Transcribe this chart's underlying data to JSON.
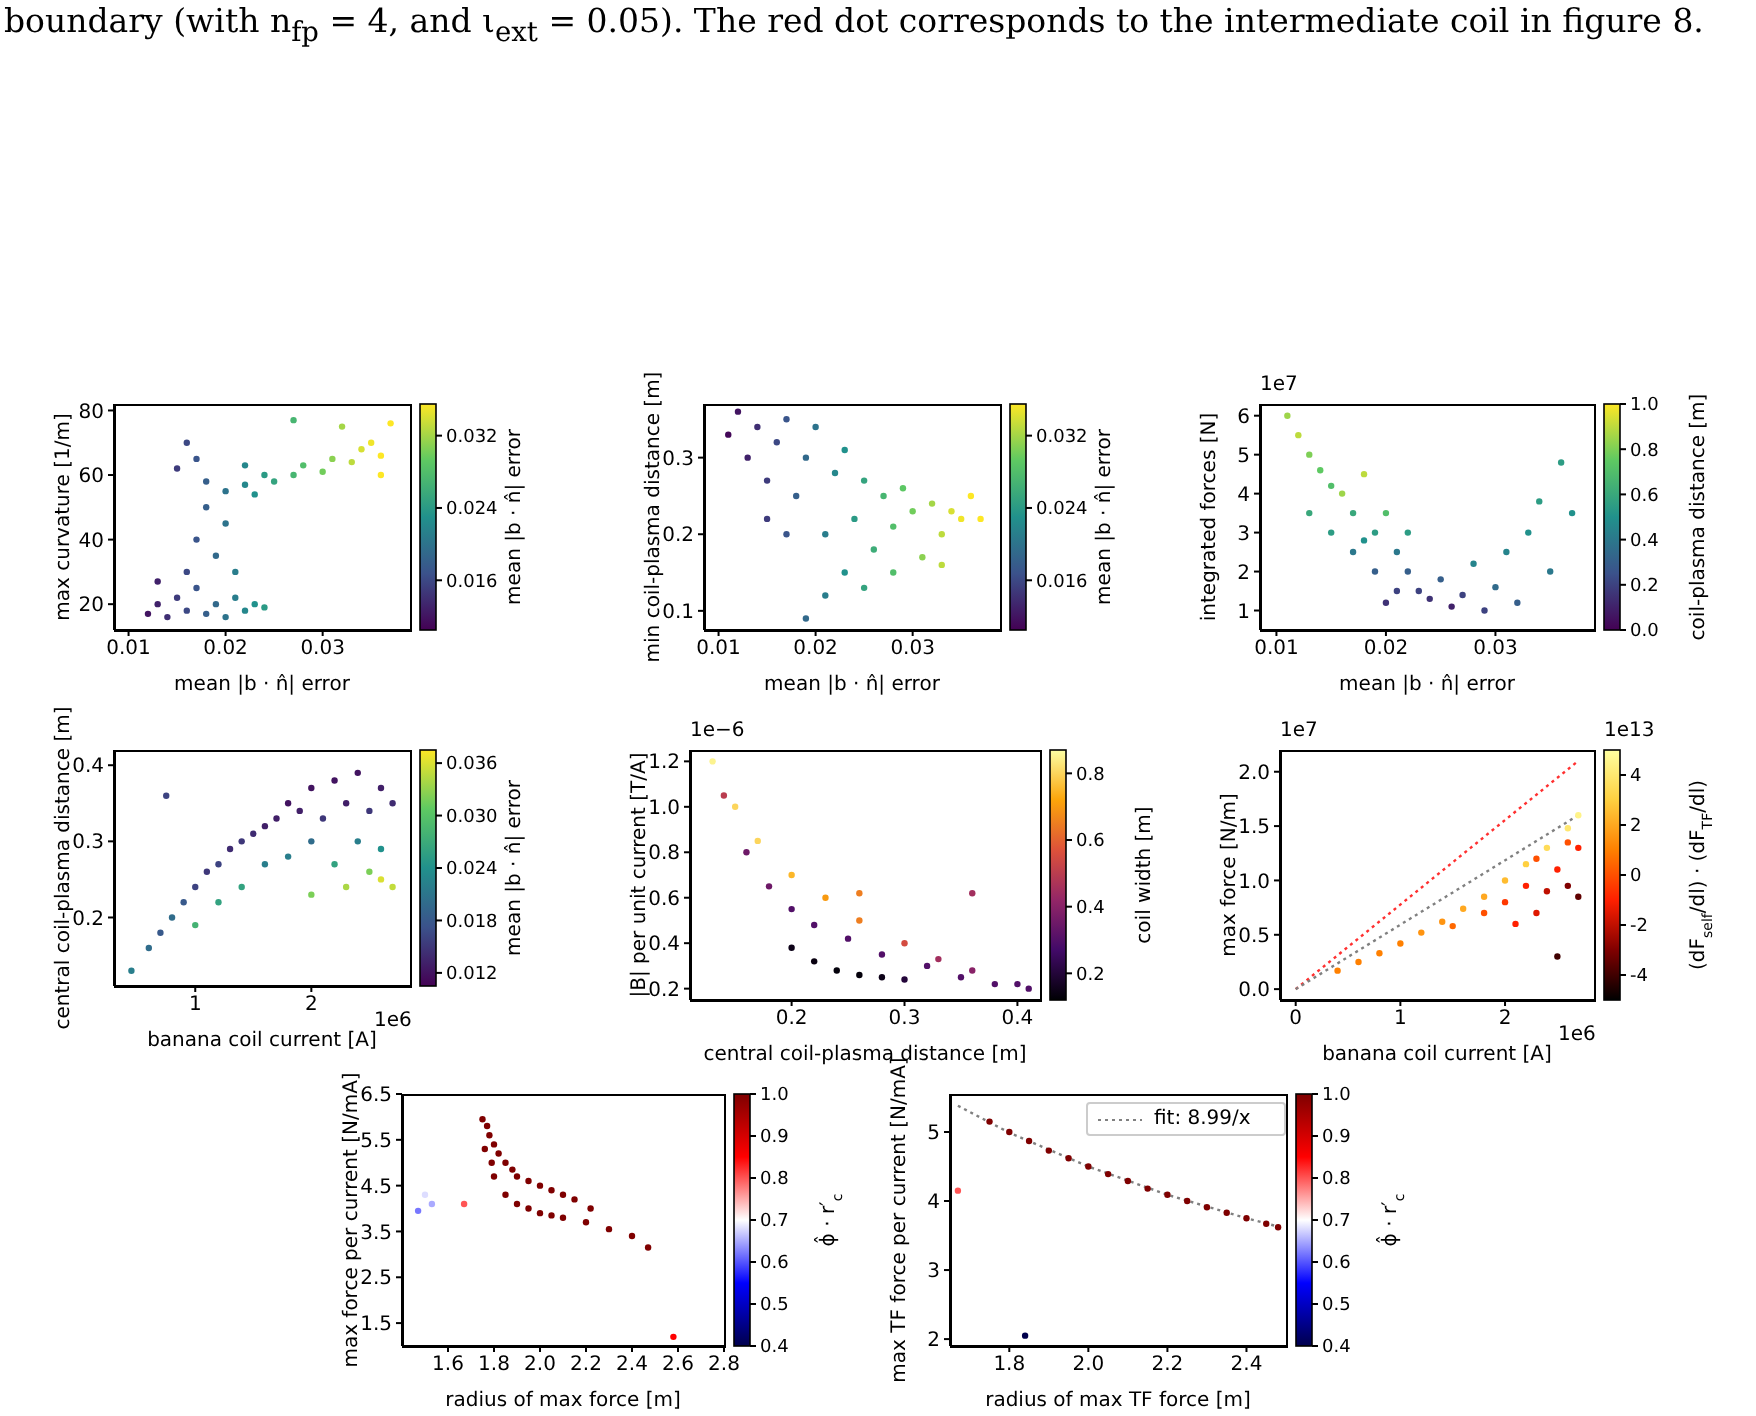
{
  "chart_data": [
    {
      "type": "scatter",
      "annotations": [
        "boundary (with n$_{fp}$ = 4, and ι$_{ext}$ = 0.05). The red dot corresponds to the intermediate coil in figure 8."
      ],
      "xlabel": "mean |b · n̂| error",
      "ylabel": "max curvature [1/m]",
      "clabel": "mean |b · n̂| error",
      "marker": "circle",
      "xlim": [
        0.0085,
        0.039
      ],
      "xticks": [
        0.01,
        0.02,
        0.03
      ],
      "ylim": [
        12,
        82
      ],
      "yticks": [
        20,
        40,
        60,
        80
      ],
      "clim": [
        0.0105,
        0.0355
      ],
      "cticks": [
        0.016,
        0.024,
        0.032
      ],
      "series": [
        {
          "x": [
            0.012,
            0.013,
            0.014,
            0.015,
            0.016,
            0.017,
            0.018,
            0.019,
            0.02,
            0.021,
            0.022,
            0.023,
            0.024,
            0.013,
            0.016,
            0.017,
            0.018,
            0.019,
            0.02,
            0.021,
            0.016,
            0.015,
            0.017,
            0.018,
            0.02,
            0.022,
            0.023,
            0.024,
            0.025,
            0.027,
            0.028,
            0.03,
            0.031,
            0.033,
            0.034,
            0.035,
            0.036,
            0.037,
            0.032,
            0.027,
            0.022,
            0.036
          ],
          "values": [
            17,
            20,
            16,
            22,
            18,
            25,
            17,
            20,
            16,
            22,
            18,
            20,
            19,
            27,
            30,
            40,
            50,
            35,
            45,
            30,
            70,
            62,
            65,
            58,
            55,
            57,
            54,
            60,
            58,
            60,
            63,
            61,
            65,
            64,
            68,
            70,
            66,
            76,
            75,
            77,
            63,
            60
          ],
          "cvalues": [
            0.012,
            0.013,
            0.014,
            0.015,
            0.016,
            0.017,
            0.018,
            0.019,
            0.02,
            0.021,
            0.022,
            0.023,
            0.024,
            0.013,
            0.016,
            0.017,
            0.018,
            0.019,
            0.02,
            0.021,
            0.016,
            0.015,
            0.017,
            0.018,
            0.02,
            0.022,
            0.023,
            0.024,
            0.025,
            0.027,
            0.028,
            0.03,
            0.031,
            0.033,
            0.034,
            0.035,
            0.036,
            0.037,
            0.032,
            0.027,
            0.022,
            0.036
          ]
        }
      ]
    },
    {
      "type": "scatter",
      "xlabel": "mean |b · n̂| error",
      "ylabel": "min coil-plasma distance [m]",
      "clabel": "mean |b · n̂| error",
      "marker": "circle",
      "xlim": [
        0.0085,
        0.039
      ],
      "xticks": [
        0.01,
        0.02,
        0.03
      ],
      "ylim": [
        0.075,
        0.37
      ],
      "yticks": [
        0.1,
        0.2,
        0.3
      ],
      "clim": [
        0.0105,
        0.0355
      ],
      "cticks": [
        0.016,
        0.024,
        0.032
      ],
      "series": [
        {
          "x": [
            0.011,
            0.012,
            0.013,
            0.014,
            0.015,
            0.016,
            0.017,
            0.018,
            0.019,
            0.02,
            0.021,
            0.022,
            0.023,
            0.024,
            0.025,
            0.026,
            0.027,
            0.028,
            0.029,
            0.03,
            0.031,
            0.032,
            0.033,
            0.034,
            0.035,
            0.036,
            0.037,
            0.019,
            0.021,
            0.025,
            0.017,
            0.015,
            0.023,
            0.028,
            0.033
          ],
          "values": [
            0.33,
            0.36,
            0.3,
            0.34,
            0.27,
            0.32,
            0.35,
            0.25,
            0.3,
            0.34,
            0.2,
            0.28,
            0.15,
            0.22,
            0.27,
            0.18,
            0.25,
            0.21,
            0.26,
            0.23,
            0.17,
            0.24,
            0.2,
            0.23,
            0.22,
            0.25,
            0.22,
            0.09,
            0.12,
            0.13,
            0.2,
            0.22,
            0.31,
            0.15,
            0.16
          ],
          "cvalues": [
            0.011,
            0.012,
            0.013,
            0.014,
            0.015,
            0.016,
            0.017,
            0.018,
            0.019,
            0.02,
            0.021,
            0.022,
            0.023,
            0.024,
            0.025,
            0.026,
            0.027,
            0.028,
            0.029,
            0.03,
            0.031,
            0.032,
            0.033,
            0.034,
            0.035,
            0.036,
            0.037,
            0.019,
            0.021,
            0.025,
            0.017,
            0.015,
            0.023,
            0.028,
            0.033
          ]
        }
      ]
    },
    {
      "type": "scatter",
      "annotations": [
        "1e7"
      ],
      "xlabel": "mean |b · n̂| error",
      "ylabel": "integrated forces [N]",
      "clabel": "coil-plasma distance [m]",
      "marker": "circle",
      "xlim": [
        0.0085,
        0.039
      ],
      "xticks": [
        0.01,
        0.02,
        0.03
      ],
      "ylim": [
        0.5,
        6.3
      ],
      "yticks": [
        1,
        2,
        3,
        4,
        5,
        6
      ],
      "clim": [
        0,
        1
      ],
      "cticks": [
        {
          "value": 0,
          "label": "0.0"
        },
        0.2,
        0.4,
        0.6,
        0.8,
        {
          "value": 1,
          "label": "1.0"
        }
      ],
      "series": [
        {
          "x": [
            0.011,
            0.012,
            0.013,
            0.014,
            0.015,
            0.016,
            0.017,
            0.018,
            0.019,
            0.02,
            0.021,
            0.022,
            0.023,
            0.024,
            0.025,
            0.026,
            0.027,
            0.028,
            0.029,
            0.03,
            0.031,
            0.032,
            0.033,
            0.034,
            0.035,
            0.036,
            0.037,
            0.015,
            0.017,
            0.019,
            0.021,
            0.013,
            0.022,
            0.018,
            0.02
          ],
          "values": [
            6.0,
            5.5,
            5.0,
            4.6,
            4.2,
            4.0,
            3.5,
            4.5,
            3.0,
            3.5,
            2.5,
            2.0,
            1.5,
            1.3,
            1.8,
            1.1,
            1.4,
            2.2,
            1.0,
            1.6,
            2.5,
            1.2,
            3.0,
            3.8,
            2.0,
            4.8,
            3.5,
            3.0,
            2.5,
            2.0,
            1.5,
            3.5,
            3.0,
            2.8,
            1.2
          ],
          "cvalues": [
            0.85,
            0.9,
            0.8,
            0.75,
            0.7,
            0.85,
            0.6,
            0.9,
            0.55,
            0.7,
            0.4,
            0.3,
            0.2,
            0.15,
            0.3,
            0.1,
            0.2,
            0.45,
            0.2,
            0.35,
            0.45,
            0.3,
            0.5,
            0.55,
            0.4,
            0.55,
            0.5,
            0.55,
            0.4,
            0.3,
            0.2,
            0.6,
            0.55,
            0.5,
            0.15
          ]
        }
      ]
    },
    {
      "type": "scatter",
      "annotations": [
        "1e6"
      ],
      "xlabel": "banana coil current [A]",
      "ylabel": "central coil-plasma distance [m]",
      "clabel": "mean |b · n̂| error",
      "marker": "circle",
      "xlim": [
        0.3,
        2.85
      ],
      "xticks": [
        1,
        2
      ],
      "ylim": [
        0.11,
        0.42
      ],
      "yticks": [
        0.2,
        0.3,
        0.4
      ],
      "clim": [
        0.0105,
        0.0375
      ],
      "cticks": [
        0.012,
        0.018,
        0.024,
        {
          "value": 0.03,
          "label": "0.030"
        },
        0.036
      ],
      "series": [
        {
          "x": [
            0.45,
            0.6,
            0.7,
            0.75,
            0.8,
            0.9,
            1.0,
            1.0,
            1.1,
            1.2,
            1.2,
            1.3,
            1.4,
            1.4,
            1.5,
            1.6,
            1.6,
            1.7,
            1.8,
            1.8,
            1.9,
            2.0,
            2.0,
            2.0,
            2.1,
            2.2,
            2.2,
            2.3,
            2.3,
            2.4,
            2.4,
            2.5,
            2.5,
            2.6,
            2.6,
            2.6,
            2.7,
            2.7
          ],
          "values": [
            0.13,
            0.16,
            0.18,
            0.36,
            0.2,
            0.22,
            0.24,
            0.19,
            0.26,
            0.27,
            0.22,
            0.29,
            0.3,
            0.24,
            0.31,
            0.32,
            0.27,
            0.33,
            0.35,
            0.28,
            0.34,
            0.37,
            0.3,
            0.23,
            0.33,
            0.38,
            0.27,
            0.35,
            0.24,
            0.39,
            0.3,
            0.34,
            0.26,
            0.37,
            0.29,
            0.25,
            0.35,
            0.24
          ],
          "cvalues": [
            0.022,
            0.02,
            0.018,
            0.016,
            0.02,
            0.018,
            0.016,
            0.028,
            0.015,
            0.016,
            0.026,
            0.014,
            0.015,
            0.026,
            0.014,
            0.013,
            0.022,
            0.013,
            0.012,
            0.022,
            0.013,
            0.012,
            0.02,
            0.032,
            0.015,
            0.012,
            0.026,
            0.013,
            0.034,
            0.012,
            0.022,
            0.015,
            0.032,
            0.013,
            0.024,
            0.036,
            0.014,
            0.035
          ]
        }
      ]
    },
    {
      "type": "scatter",
      "annotations": [
        "1e−6"
      ],
      "xlabel": "central coil-plasma distance [m]",
      "ylabel": "|B| per unit current [T/A]",
      "clabel": "coil width [m]",
      "marker": "circle",
      "xlim": [
        0.11,
        0.42
      ],
      "xticks": [
        0.2,
        0.3,
        0.4
      ],
      "ylim": [
        0.15,
        1.25
      ],
      "yticks": [
        0.2,
        0.4,
        0.6,
        0.8,
        {
          "value": 1,
          "label": "1.0"
        },
        1.2
      ],
      "clim": [
        0.12,
        0.87
      ],
      "cticks": [
        0.2,
        0.4,
        0.6,
        0.8
      ],
      "series": [
        {
          "x": [
            0.13,
            0.15,
            0.17,
            0.2,
            0.23,
            0.26,
            0.3,
            0.33,
            0.36,
            0.4,
            0.14,
            0.16,
            0.18,
            0.2,
            0.22,
            0.25,
            0.28,
            0.32,
            0.35,
            0.38,
            0.41,
            0.2,
            0.22,
            0.24,
            0.26,
            0.28,
            0.3,
            0.26,
            0.36
          ],
          "values": [
            1.2,
            1.0,
            0.85,
            0.7,
            0.6,
            0.5,
            0.4,
            0.33,
            0.28,
            0.22,
            1.05,
            0.8,
            0.65,
            0.55,
            0.48,
            0.42,
            0.35,
            0.3,
            0.25,
            0.22,
            0.2,
            0.38,
            0.32,
            0.28,
            0.26,
            0.25,
            0.24,
            0.62,
            0.62
          ],
          "cvalues": [
            0.85,
            0.8,
            0.8,
            0.75,
            0.7,
            0.65,
            0.55,
            0.45,
            0.4,
            0.3,
            0.5,
            0.35,
            0.35,
            0.3,
            0.3,
            0.3,
            0.3,
            0.3,
            0.3,
            0.3,
            0.3,
            0.15,
            0.14,
            0.13,
            0.13,
            0.15,
            0.2,
            0.65,
            0.45
          ]
        }
      ]
    },
    {
      "type": "scatter",
      "annotations": [
        "1e7",
        "1e6",
        "1e13"
      ],
      "xlabel": "banana coil current [A]",
      "ylabel": "max force [N/m]",
      "clabel": "(dF$_{self}$/dl) · (dF$_{TF}$/dl)",
      "xlim": [
        -0.15,
        2.85
      ],
      "xticks": [
        0,
        1,
        2
      ],
      "ylim": [
        -0.1,
        2.2
      ],
      "yticks": [
        {
          "value": 0,
          "label": "0.0"
        },
        0.5,
        {
          "value": 1,
          "label": "1.0"
        },
        1.5,
        {
          "value": 2,
          "label": "2.0"
        }
      ],
      "clim": [
        -5,
        5
      ],
      "cticks": [
        -4,
        -2,
        0,
        2,
        4
      ],
      "series": [
        {
          "marker": "circle",
          "x": [
            0.4,
            0.6,
            0.8,
            1.0,
            1.2,
            1.4,
            1.6,
            1.8,
            2.0,
            2.2,
            2.4,
            2.6,
            2.7,
            1.5,
            1.8,
            2.0,
            2.2,
            2.3,
            2.4,
            2.5,
            2.6,
            2.7,
            2.7,
            2.6,
            2.5,
            2.1,
            2.3
          ],
          "values": [
            0.17,
            0.25,
            0.33,
            0.42,
            0.52,
            0.62,
            0.74,
            0.85,
            1.0,
            1.15,
            1.3,
            1.48,
            1.6,
            0.58,
            0.7,
            0.8,
            0.95,
            1.2,
            0.9,
            1.1,
            0.95,
            0.85,
            1.3,
            1.35,
            0.3,
            0.6,
            0.7
          ],
          "colors": [
            "#ff8000",
            "#ff8000",
            "#ff8000",
            "#ff8000",
            "#ff9410",
            "#ff9410",
            "#ffa820",
            "#ffa820",
            "#ffbc30",
            "#ffd040",
            "#ffdc58",
            "#ffe770",
            "#fff388",
            "#ff6800",
            "#ff5000",
            "#ff3800",
            "#ff2000",
            "#ff5000",
            "#bf1000",
            "#ff2000",
            "#800000",
            "#600000",
            "#ff2000",
            "#ff5000",
            "#400000",
            "#ff2000",
            "#df1800"
          ]
        },
        {
          "type": "line",
          "color": "#ff3030",
          "line_style": "dotted",
          "x": [
            0,
            2.7
          ],
          "values": [
            0,
            2.1
          ]
        },
        {
          "type": "line",
          "color": "#808080",
          "line_style": "dotted",
          "x": [
            0,
            2.7
          ],
          "values": [
            0,
            1.6
          ]
        }
      ]
    },
    {
      "type": "scatter",
      "xlabel": "radius of max force [m]",
      "ylabel": "max force per current [N/mA]",
      "clabel": "ϕ̂ · r′$_{c}$",
      "marker": "circle",
      "xlim": [
        1.4,
        2.8
      ],
      "xticks": [
        1.6,
        1.8,
        {
          "value": 2,
          "label": "2.0"
        },
        2.2,
        2.4,
        2.6,
        2.8
      ],
      "ylim": [
        1,
        6.5
      ],
      "yticks": [
        1.5,
        2.5,
        3.5,
        4.5,
        5.5,
        6.5
      ],
      "clim": [
        0.4,
        1
      ],
      "cticks": [
        0.4,
        0.5,
        0.6,
        0.7,
        0.8,
        0.9,
        {
          "value": 1,
          "label": "1.0"
        }
      ],
      "series": [
        {
          "x": [
            1.75,
            1.77,
            1.78,
            1.8,
            1.82,
            1.85,
            1.88,
            1.9,
            1.95,
            2.0,
            2.05,
            2.1,
            2.15,
            2.22,
            1.8,
            1.85,
            1.9,
            1.95,
            2.0,
            2.05,
            2.1,
            2.2,
            2.3,
            2.4,
            2.47,
            1.76,
            1.79,
            1.47,
            1.5,
            1.53,
            1.67,
            2.58
          ],
          "values": [
            5.95,
            5.8,
            5.6,
            5.4,
            5.2,
            5.0,
            4.85,
            4.7,
            4.6,
            4.5,
            4.4,
            4.3,
            4.2,
            4.0,
            4.7,
            4.3,
            4.1,
            4.0,
            3.9,
            3.85,
            3.8,
            3.7,
            3.55,
            3.4,
            3.15,
            5.3,
            5.0,
            3.95,
            4.3,
            4.1,
            4.1,
            1.2
          ],
          "cvalues": [
            1,
            1,
            1,
            1,
            1,
            1,
            1,
            1,
            1,
            1,
            1,
            1,
            1,
            1,
            1,
            1,
            1,
            1,
            1,
            1,
            1,
            1,
            1,
            1,
            1,
            1,
            1,
            0.62,
            0.68,
            0.65,
            0.8,
            0.85
          ]
        }
      ]
    },
    {
      "type": "scatter",
      "ylabel": "max TF force per current [N/mA]",
      "xlabel": "radius of max TF force [m]",
      "clabel": "ϕ̂ · r′$_{c}$",
      "legend": "top right",
      "xlim": [
        1.65,
        2.5
      ],
      "xticks": [
        1.8,
        {
          "value": 2,
          "label": "2.0"
        },
        2.2,
        2.4
      ],
      "ylim": [
        1.9,
        5.55
      ],
      "yticks": [
        2,
        3,
        4,
        5
      ],
      "clim": [
        0.4,
        1
      ],
      "cticks": [
        0.4,
        0.5,
        0.6,
        0.7,
        0.8,
        0.9,
        {
          "value": 1,
          "label": "1.0"
        }
      ],
      "series": [
        {
          "marker": "circle",
          "x": [
            1.75,
            1.8,
            1.85,
            1.9,
            1.95,
            2.0,
            2.05,
            2.1,
            2.15,
            2.2,
            2.25,
            2.3,
            2.35,
            2.4,
            2.45,
            2.48,
            1.67,
            1.84
          ],
          "values": [
            5.15,
            5.0,
            4.87,
            4.73,
            4.62,
            4.5,
            4.39,
            4.29,
            4.18,
            4.09,
            4.0,
            3.91,
            3.83,
            3.75,
            3.67,
            3.62,
            4.15,
            2.05
          ],
          "colors": [
            "#7f0000",
            "#7f0000",
            "#7f0000",
            "#7f0000",
            "#7f0000",
            "#7f0000",
            "#7f0000",
            "#7f0000",
            "#7f0000",
            "#7f0000",
            "#7f0000",
            "#7f0000",
            "#7f0000",
            "#7f0000",
            "#7f0000",
            "#7f0000",
            "#ff5555",
            "#00004c"
          ]
        },
        {
          "type": "line",
          "name": "fit: 8.99/x",
          "color": "#808080",
          "line_style": "dotted",
          "x": [
            1.67,
            1.8,
            2.0,
            2.2,
            2.4,
            2.48
          ],
          "values": [
            5.38,
            4.99,
            4.5,
            4.09,
            3.75,
            3.63
          ]
        }
      ]
    }
  ]
}
